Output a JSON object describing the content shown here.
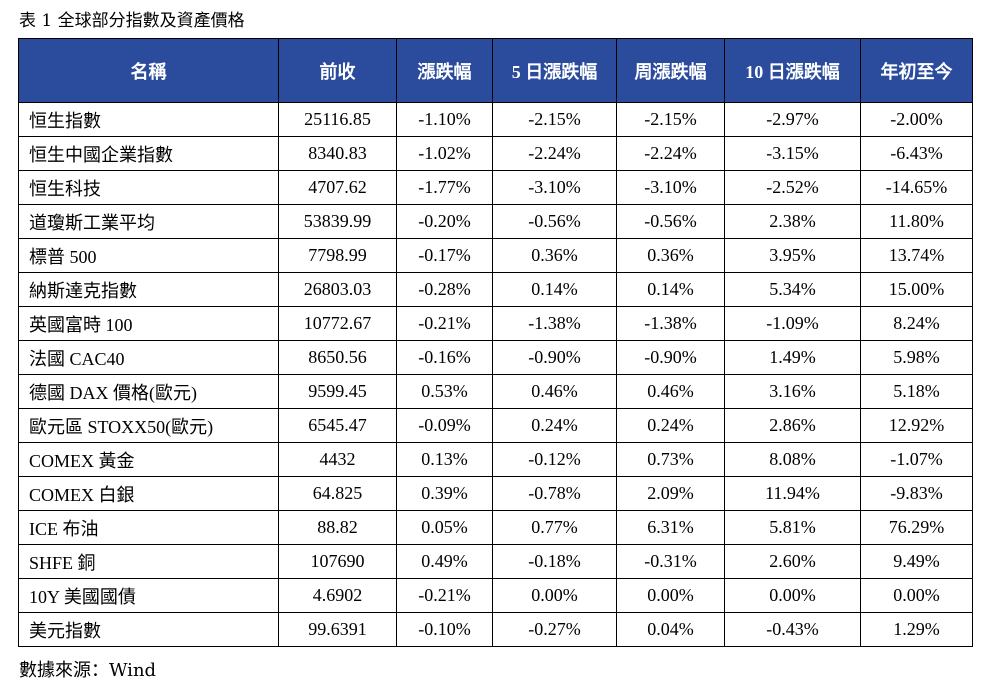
{
  "caption": "表 1 全球部分指數及資產價格",
  "source": "數據來源：Wind",
  "headers": [
    "名稱",
    "前收",
    "漲跌幅",
    "5 日漲跌幅",
    "周漲跌幅",
    "10 日漲跌幅",
    "年初至今"
  ],
  "colors": {
    "header_bg": "#2b4c9c",
    "header_text": "#ffffff",
    "border": "#000000"
  },
  "rows": [
    [
      "恒生指數",
      "25116.85",
      "-1.10%",
      "-2.15%",
      "-2.15%",
      "-2.97%",
      "-2.00%"
    ],
    [
      "恒生中國企業指數",
      "8340.83",
      "-1.02%",
      "-2.24%",
      "-2.24%",
      "-3.15%",
      "-6.43%"
    ],
    [
      "恒生科技",
      "4707.62",
      "-1.77%",
      "-3.10%",
      "-3.10%",
      "-2.52%",
      "-14.65%"
    ],
    [
      "道瓊斯工業平均",
      "53839.99",
      "-0.20%",
      "-0.56%",
      "-0.56%",
      "2.38%",
      "11.80%"
    ],
    [
      "標普 500",
      "7798.99",
      "-0.17%",
      "0.36%",
      "0.36%",
      "3.95%",
      "13.74%"
    ],
    [
      "納斯達克指數",
      "26803.03",
      "-0.28%",
      "0.14%",
      "0.14%",
      "5.34%",
      "15.00%"
    ],
    [
      "英國富時 100",
      "10772.67",
      "-0.21%",
      "-1.38%",
      "-1.38%",
      "-1.09%",
      "8.24%"
    ],
    [
      "法國 CAC40",
      "8650.56",
      "-0.16%",
      "-0.90%",
      "-0.90%",
      "1.49%",
      "5.98%"
    ],
    [
      "德國 DAX 價格(歐元)",
      "9599.45",
      "0.53%",
      "0.46%",
      "0.46%",
      "3.16%",
      "5.18%"
    ],
    [
      "歐元區 STOXX50(歐元)",
      "6545.47",
      "-0.09%",
      "0.24%",
      "0.24%",
      "2.86%",
      "12.92%"
    ],
    [
      "COMEX 黃金",
      "4432",
      "0.13%",
      "-0.12%",
      "0.73%",
      "8.08%",
      "-1.07%"
    ],
    [
      "COMEX 白銀",
      "64.825",
      "0.39%",
      "-0.78%",
      "2.09%",
      "11.94%",
      "-9.83%"
    ],
    [
      "ICE 布油",
      "88.82",
      "0.05%",
      "0.77%",
      "6.31%",
      "5.81%",
      "76.29%"
    ],
    [
      "SHFE 銅",
      "107690",
      "0.49%",
      "-0.18%",
      "-0.31%",
      "2.60%",
      "9.49%"
    ],
    [
      "10Y  美國國債",
      "4.6902",
      "-0.21%",
      "0.00%",
      "0.00%",
      "0.00%",
      "0.00%"
    ],
    [
      "美元指數",
      "99.6391",
      "-0.10%",
      "-0.27%",
      "0.04%",
      "-0.43%",
      "1.29%"
    ]
  ]
}
